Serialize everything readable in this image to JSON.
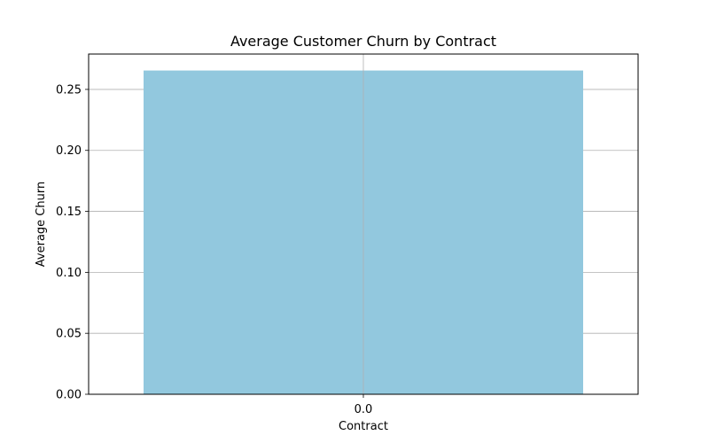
{
  "chart_data": {
    "type": "bar",
    "title": "Average Customer Churn by Contract",
    "xlabel": "Contract",
    "ylabel": "Average Churn",
    "categories": [
      "0.0"
    ],
    "values": [
      0.2655
    ],
    "ylim": [
      0,
      0.279
    ],
    "yticks": [
      0,
      0.05,
      0.1,
      0.15,
      0.2,
      0.25
    ],
    "ytick_labels": [
      "0.00",
      "0.05",
      "0.10",
      "0.15",
      "0.20",
      "0.25"
    ],
    "grid": true,
    "legend": "none",
    "bar_color": "#92c8de",
    "grid_color": "#b0b0b0"
  }
}
